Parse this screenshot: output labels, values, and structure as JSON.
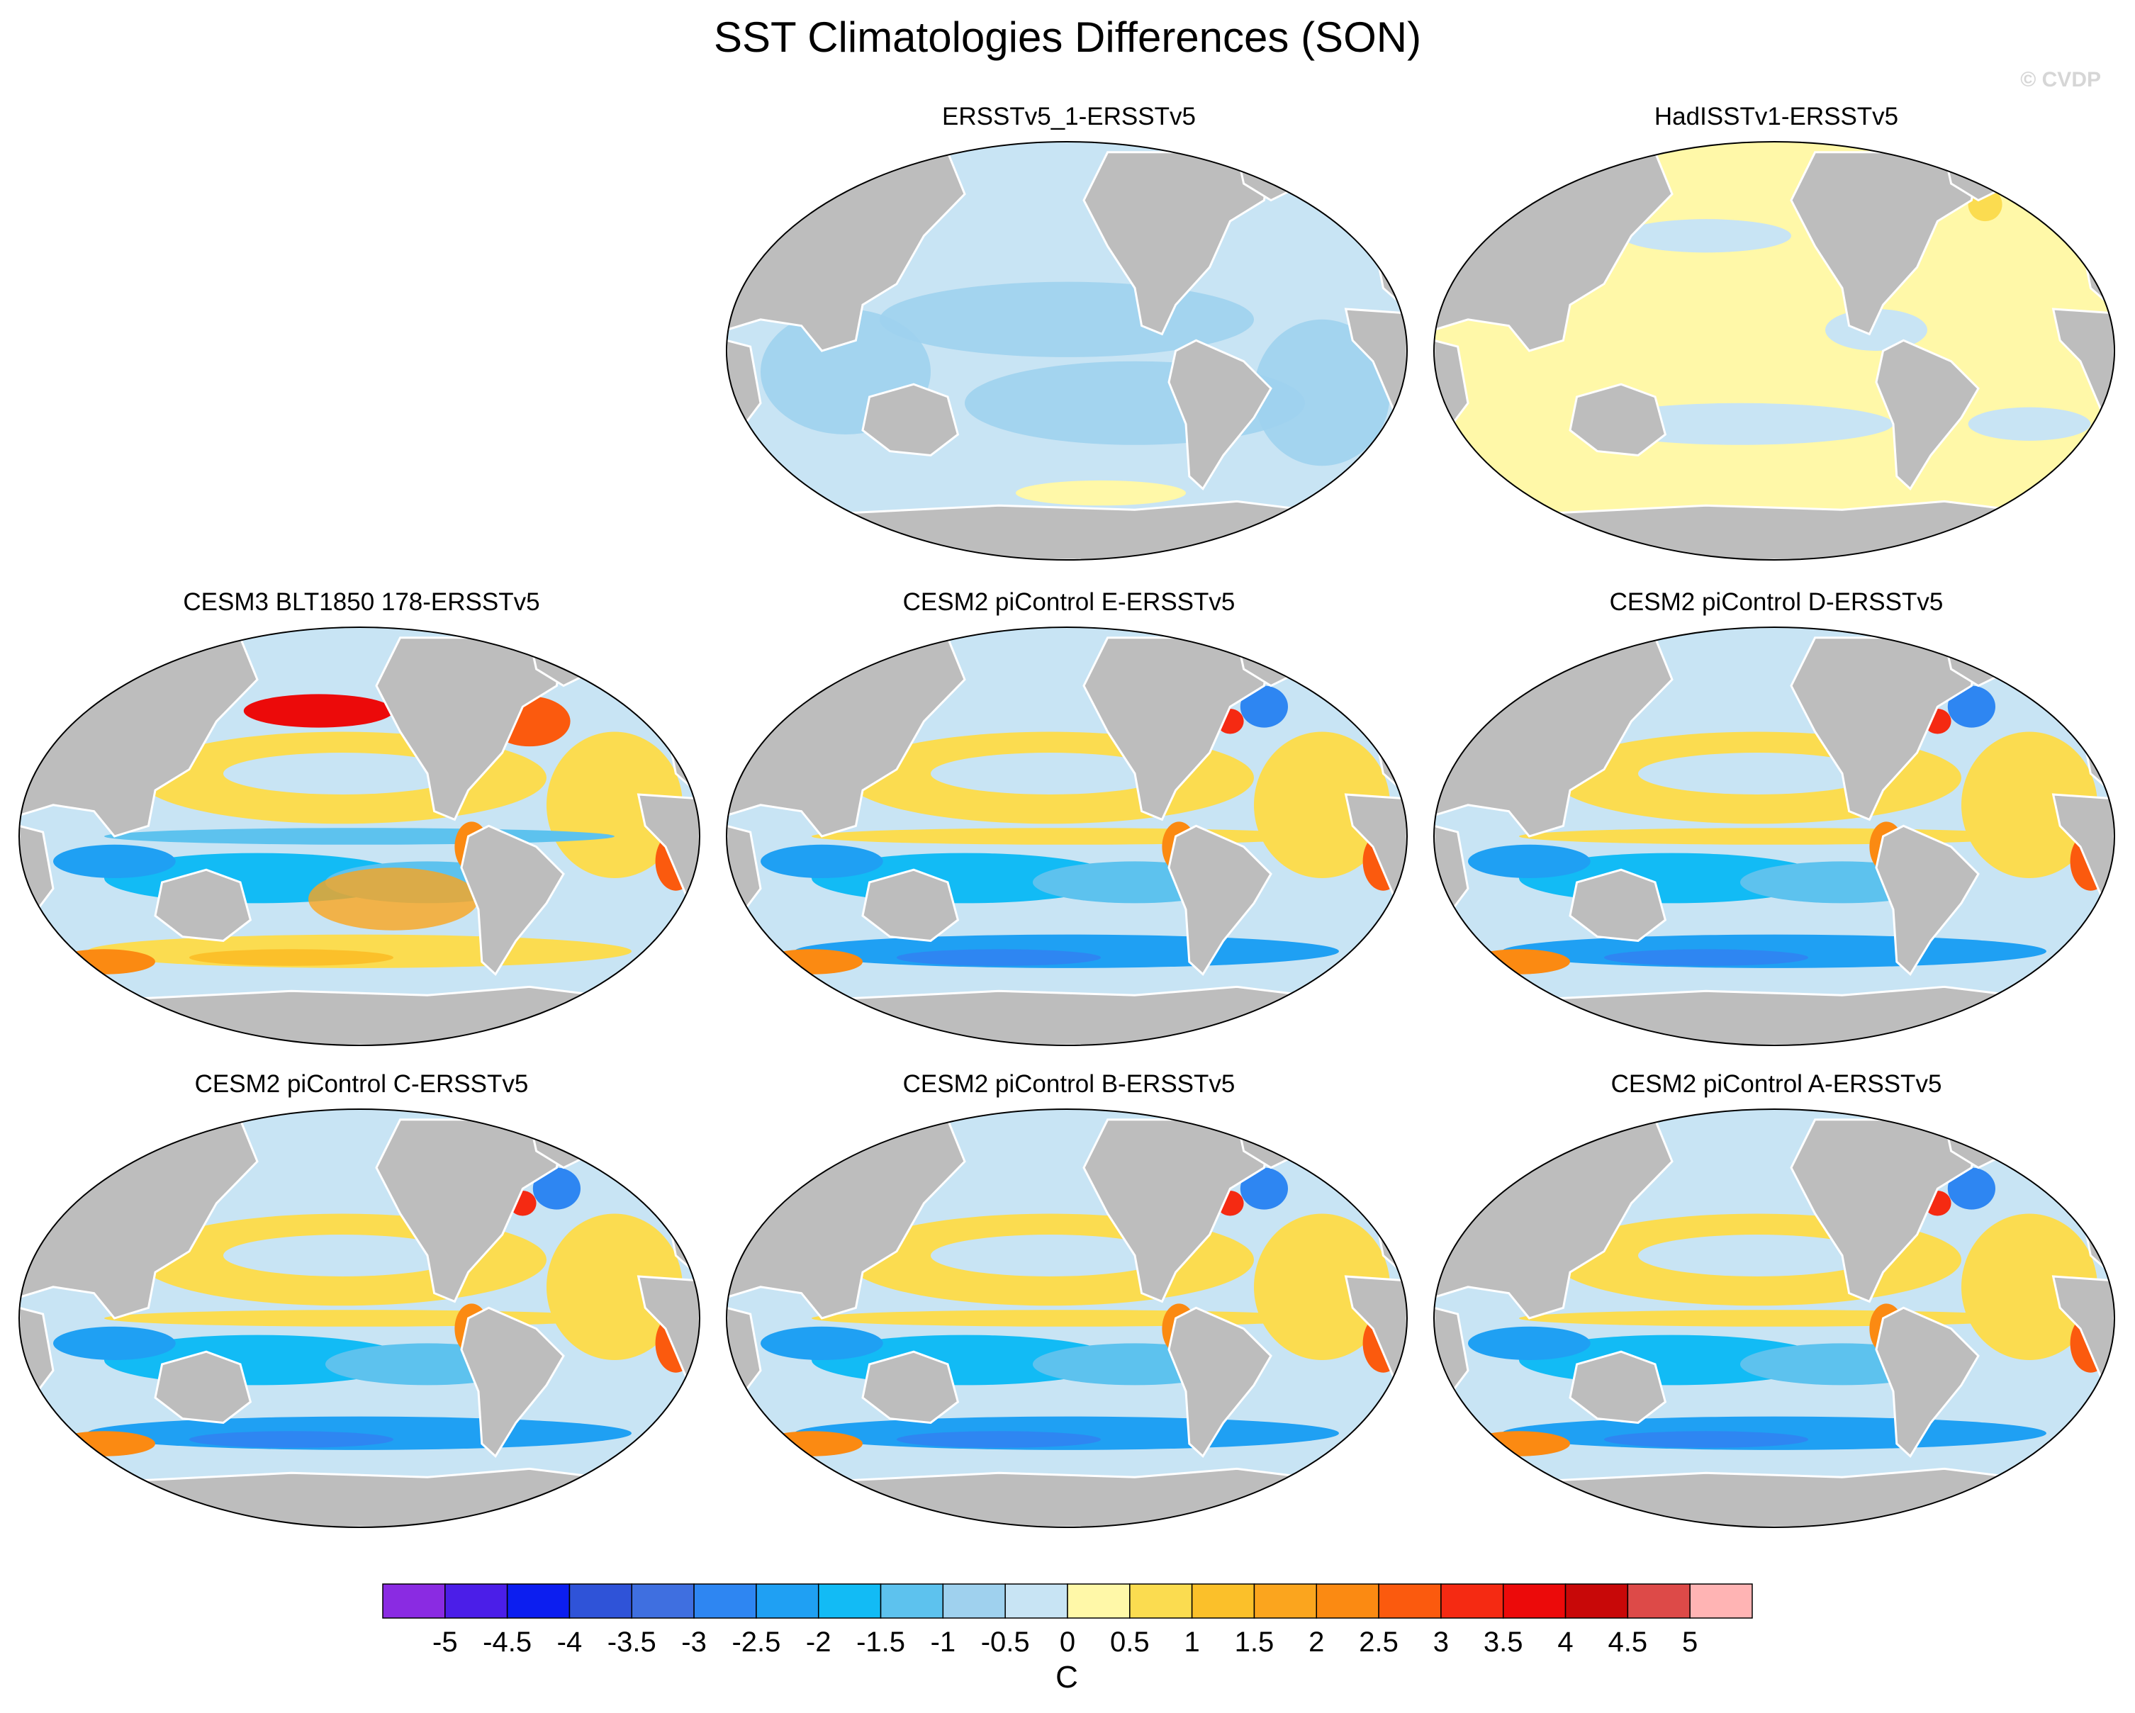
{
  "title": "SST Climatologies Differences (SON)",
  "copyright": "© CVDP",
  "colorbar": {
    "labels": [
      "-5",
      "-4.5",
      "-4",
      "-3.5",
      "-3",
      "-2.5",
      "-2",
      "-1.5",
      "-1",
      "-0.5",
      "0",
      "0.5",
      "1",
      "1.5",
      "2",
      "2.5",
      "3",
      "3.5",
      "4",
      "4.5",
      "5"
    ],
    "colors": [
      "#8a2be2",
      "#4b1ee8",
      "#0c1ef0",
      "#2f53d8",
      "#3f6fe0",
      "#2e86f2",
      "#1fa0f3",
      "#12bbf5",
      "#5dc2ee",
      "#9fd1ee",
      "#c8e4f4",
      "#fff8a8",
      "#fbdc50",
      "#fbc02a",
      "#fba51e",
      "#fb8a12",
      "#fb5a0e",
      "#f52a12",
      "#ec0a0a",
      "#c80808",
      "#dd4a48",
      "#ffb4b4"
    ],
    "units": "C"
  },
  "panels": [
    {
      "title": "ERSSTv5_1-ERSSTv5",
      "style": "uniform-cool"
    },
    {
      "title": "HadISSTv1-ERSSTv5",
      "style": "uniform-warm"
    },
    {
      "title": "CESM3 BLT1850 178-ERSSTv5",
      "style": "model-cesm3"
    },
    {
      "title": "CESM2 piControl E-ERSSTv5",
      "style": "model-cesm2"
    },
    {
      "title": "CESM2 piControl D-ERSSTv5",
      "style": "model-cesm2"
    },
    {
      "title": "CESM2 piControl C-ERSSTv5",
      "style": "model-cesm2"
    },
    {
      "title": "CESM2 piControl B-ERSSTv5",
      "style": "model-cesm2"
    },
    {
      "title": "CESM2 piControl A-ERSSTv5",
      "style": "model-cesm2"
    }
  ]
}
